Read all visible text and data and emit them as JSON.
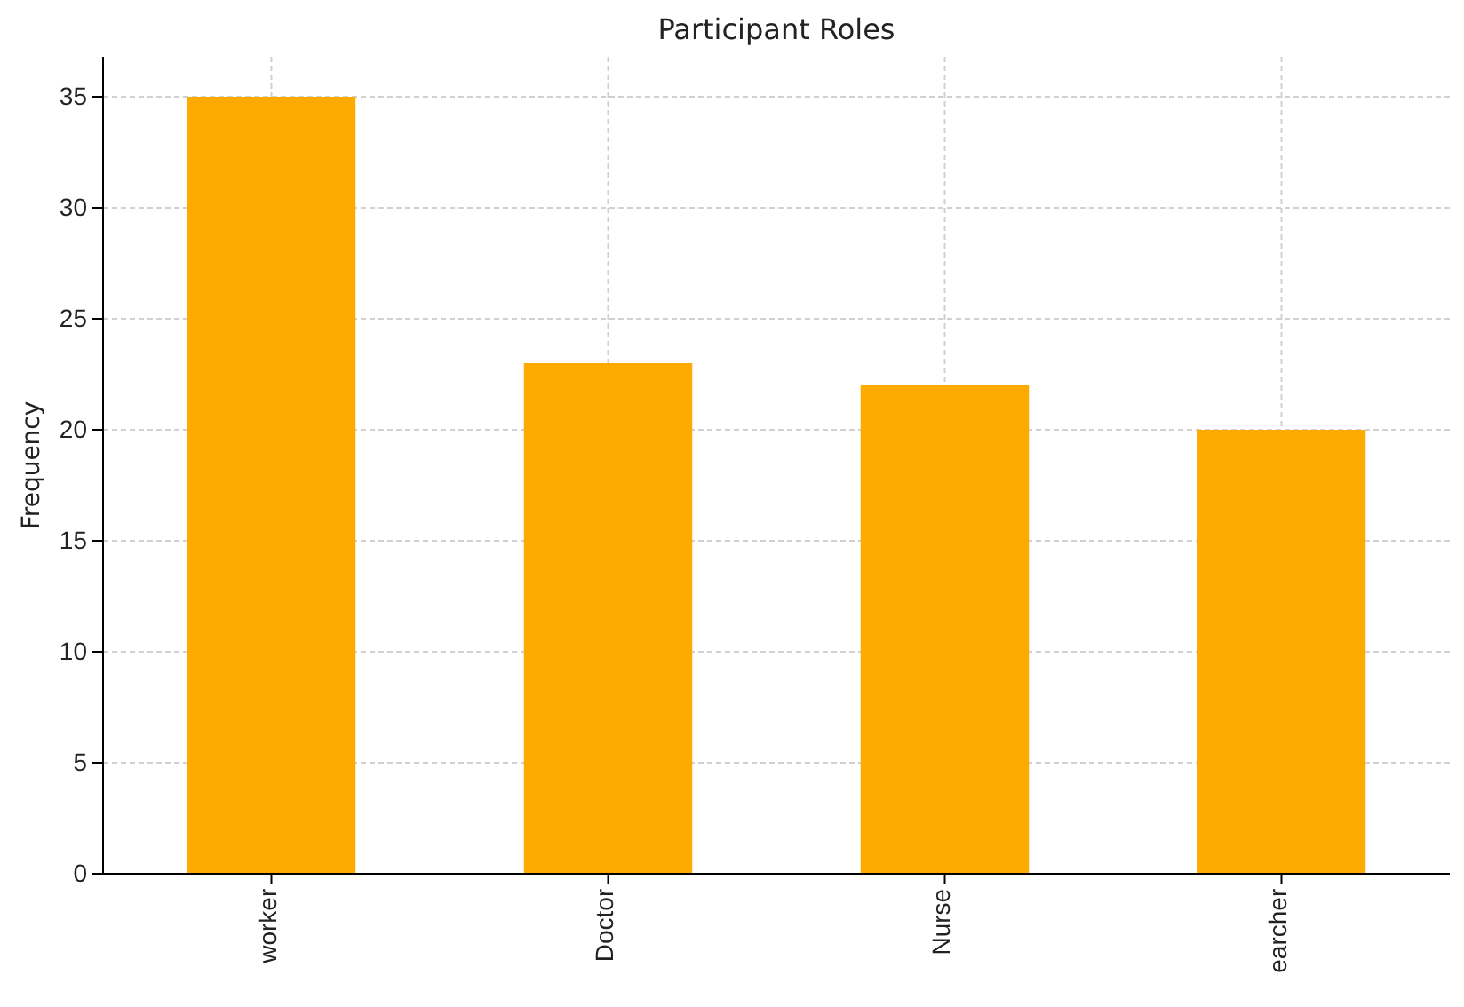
{
  "chart_data": {
    "type": "bar",
    "title": "Participant Roles",
    "ylabel": "Frequency",
    "categories": [
      "worker",
      "Doctor",
      "Nurse",
      "earcher"
    ],
    "values": [
      35,
      23,
      22,
      20
    ],
    "color": "#ffaa00",
    "ylim": [
      0,
      36.8
    ],
    "yticks": [
      0,
      5,
      10,
      15,
      20,
      25,
      30,
      35
    ],
    "grid": true
  }
}
